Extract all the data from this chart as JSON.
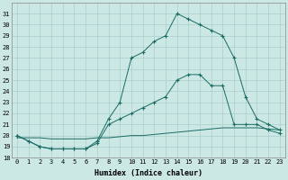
{
  "xlabel": "Humidex (Indice chaleur)",
  "bg_color": "#cce8e5",
  "grid_color": "#aacfcc",
  "line_color": "#1a6b64",
  "xlim": [
    -0.5,
    23.5
  ],
  "ylim": [
    18,
    32
  ],
  "yticks": [
    18,
    19,
    20,
    21,
    22,
    23,
    24,
    25,
    26,
    27,
    28,
    29,
    30,
    31
  ],
  "xticks": [
    0,
    1,
    2,
    3,
    4,
    5,
    6,
    7,
    8,
    9,
    10,
    11,
    12,
    13,
    14,
    15,
    16,
    17,
    18,
    19,
    20,
    21,
    22,
    23
  ],
  "tick_fontsize": 5.0,
  "xlabel_fontsize": 6.0,
  "line1_x": [
    0,
    1,
    2,
    3,
    4,
    5,
    6,
    7,
    8,
    9,
    10,
    11,
    12,
    13,
    14,
    15,
    16,
    17,
    18,
    19,
    20,
    21,
    22,
    23
  ],
  "line1_y": [
    20,
    19.5,
    19,
    18.8,
    18.8,
    18.8,
    18.8,
    19.5,
    21.5,
    23,
    27,
    27.5,
    28.5,
    29,
    31,
    30.5,
    30,
    29.5,
    29,
    27,
    23.5,
    21.5,
    21,
    20.5
  ],
  "line2_x": [
    0,
    1,
    2,
    3,
    4,
    5,
    6,
    7,
    8,
    9,
    10,
    11,
    12,
    13,
    14,
    15,
    16,
    17,
    18,
    19,
    20,
    21,
    22,
    23
  ],
  "line2_y": [
    20,
    19.5,
    19,
    18.8,
    18.8,
    18.8,
    18.8,
    19.3,
    21,
    21.5,
    22,
    22.5,
    23,
    23.5,
    25,
    25.5,
    25.5,
    24.5,
    24.5,
    21,
    21,
    21,
    20.5,
    20.2
  ],
  "line3_x": [
    0,
    1,
    2,
    3,
    4,
    5,
    6,
    7,
    8,
    9,
    10,
    11,
    12,
    13,
    14,
    15,
    16,
    17,
    18,
    19,
    20,
    21,
    22,
    23
  ],
  "line3_y": [
    19.8,
    19.8,
    19.8,
    19.7,
    19.7,
    19.7,
    19.7,
    19.8,
    19.8,
    19.9,
    20,
    20,
    20.1,
    20.2,
    20.3,
    20.4,
    20.5,
    20.6,
    20.7,
    20.7,
    20.7,
    20.7,
    20.6,
    20.5
  ]
}
